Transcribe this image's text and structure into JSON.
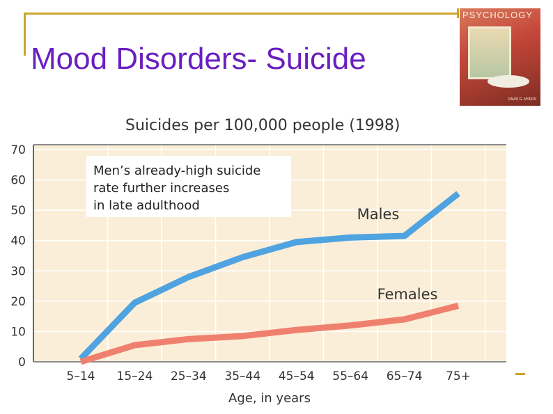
{
  "slide": {
    "title": "Mood Disorders- Suicide",
    "title_color": "#6a1fc0",
    "accent_color": "#c9a62a",
    "cover": {
      "text": "PSYCHOLOGY",
      "author": "DAVID G. MYERS"
    }
  },
  "chart_data": {
    "type": "line",
    "title": "Suicides per 100,000 people (1998)",
    "xlabel": "Age, in years",
    "ylabel": "",
    "categories": [
      "5–14",
      "15–24",
      "25–34",
      "35–44",
      "45–54",
      "55–64",
      "65–74",
      "75+"
    ],
    "ylim": [
      0,
      70
    ],
    "yticks": [
      0,
      10,
      20,
      30,
      40,
      50,
      60,
      70
    ],
    "grid": true,
    "series": [
      {
        "name": "Males",
        "color": "#4fa3e0",
        "values": [
          1,
          19.5,
          28,
          34.5,
          39.5,
          41,
          41.5,
          55.5
        ]
      },
      {
        "name": "Females",
        "color": "#f0806e",
        "values": [
          0,
          5.5,
          7.5,
          8.5,
          10.5,
          12,
          14,
          18.5
        ]
      }
    ],
    "annotation": [
      "Men’s already-high suicide",
      "rate further increases",
      "in late adulthood"
    ],
    "background_color": "#fbeed8"
  }
}
